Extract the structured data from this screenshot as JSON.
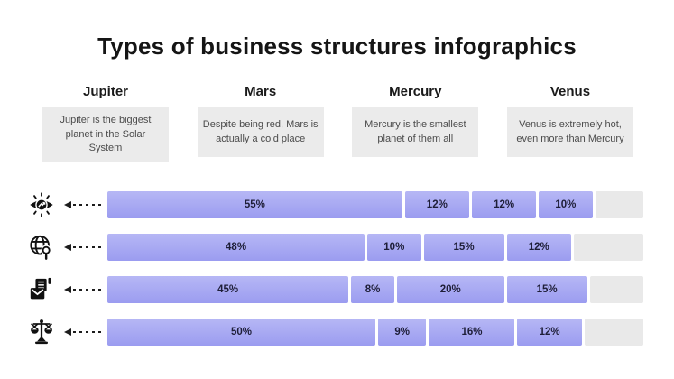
{
  "title": "Types of business structures infographics",
  "columns": [
    {
      "name": "Jupiter",
      "description": "Jupiter is the biggest planet in the Solar System"
    },
    {
      "name": "Mars",
      "description": "Despite being red, Mars is actually a cold place"
    },
    {
      "name": "Mercury",
      "description": "Mercury is the smallest planet of them all"
    },
    {
      "name": "Venus",
      "description": "Venus is extremely hot, even more than Mercury"
    }
  ],
  "chart_data": {
    "type": "bar",
    "subtype": "horizontal-stacked",
    "title": "Types of business structures infographics",
    "xlim": [
      0,
      100
    ],
    "unit": "%",
    "legend_position": "column-headers-top",
    "grid": false,
    "categories": [
      "eye-vision",
      "globe-search",
      "mail-checklist",
      "balance-scale"
    ],
    "series": [
      {
        "name": "Jupiter",
        "values": [
          55,
          48,
          45,
          50
        ]
      },
      {
        "name": "Mars",
        "values": [
          12,
          10,
          8,
          9
        ]
      },
      {
        "name": "Mercury",
        "values": [
          12,
          15,
          20,
          16
        ]
      },
      {
        "name": "Venus",
        "values": [
          10,
          12,
          15,
          12
        ]
      }
    ],
    "rows": [
      {
        "icon": "eye-vision-icon",
        "values": [
          55,
          12,
          12,
          10
        ],
        "labels": [
          "55%",
          "12%",
          "12%",
          "10%"
        ],
        "remainder": 11
      },
      {
        "icon": "globe-search-icon",
        "values": [
          48,
          10,
          15,
          12
        ],
        "labels": [
          "48%",
          "10%",
          "15%",
          "12%"
        ],
        "remainder": 15
      },
      {
        "icon": "mail-checklist-icon",
        "values": [
          45,
          8,
          20,
          15
        ],
        "labels": [
          "45%",
          "8%",
          "20%",
          "15%"
        ],
        "remainder": 12
      },
      {
        "icon": "balance-scale-icon",
        "values": [
          50,
          9,
          16,
          12
        ],
        "labels": [
          "50%",
          "9%",
          "16%",
          "12%"
        ],
        "remainder": 13
      }
    ]
  },
  "colors": {
    "bar_fill_top": "#b6b7f5",
    "bar_fill_bottom": "#9b9cf0",
    "bar_remainder": "#e9e9e9",
    "description_box_bg": "#ebebeb",
    "title_text": "#151515",
    "description_text": "#4b4b4b",
    "segment_label_text": "#1e1e38",
    "background": "#ffffff"
  }
}
